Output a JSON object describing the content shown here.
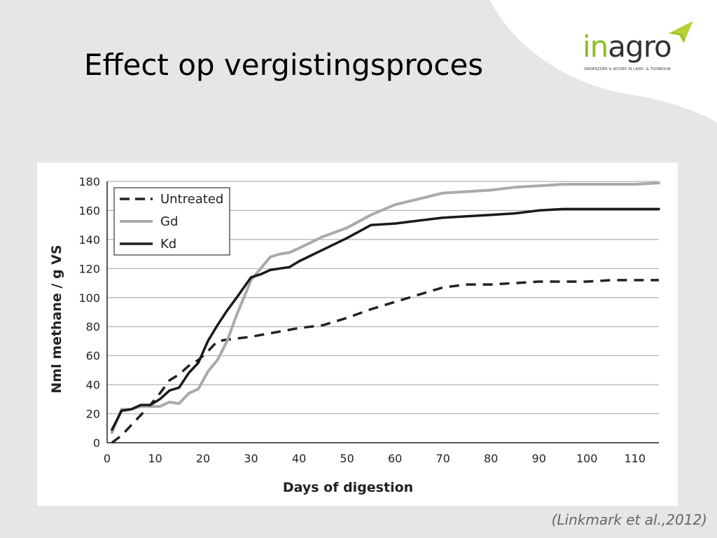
{
  "slide": {
    "title": "Effect op vergistingsproces",
    "citation": "(Linkmark et al.,2012)"
  },
  "logo": {
    "text_in": "in",
    "text_agro": "agro",
    "subtitle": "ONDERZOEK & ADVIES IN LAND- & TUINBOUW",
    "colors": {
      "green": "#8dbe24",
      "dark": "#333333",
      "leaf": "#b5d334"
    }
  },
  "colors": {
    "background": "#e6e6e6",
    "swoosh": "#ffffff",
    "grid": "#b0b0b0"
  },
  "chart_data": {
    "type": "line",
    "title": "",
    "xlabel": "Days of digestion",
    "ylabel": "Nml methane / g VS",
    "xlim": [
      0,
      115
    ],
    "ylim": [
      0,
      180
    ],
    "xticks": [
      0,
      10,
      20,
      30,
      40,
      50,
      60,
      70,
      80,
      90,
      100,
      110
    ],
    "yticks": [
      0,
      20,
      40,
      60,
      80,
      100,
      120,
      140,
      160,
      180
    ],
    "grid": "horizontal",
    "legend_position": "top-left",
    "series": [
      {
        "name": "Untreated",
        "color": "#222222",
        "style": "dashed",
        "x": [
          1,
          3,
          5,
          7,
          9,
          11,
          13,
          15,
          17,
          19,
          21,
          23,
          25,
          30,
          35,
          40,
          45,
          50,
          55,
          60,
          65,
          70,
          75,
          80,
          85,
          90,
          95,
          100,
          105,
          110,
          115
        ],
        "y": [
          0,
          5,
          12,
          19,
          26,
          34,
          43,
          47,
          53,
          57,
          63,
          70,
          71,
          73,
          76,
          79,
          81,
          86,
          92,
          97,
          102,
          107,
          109,
          109,
          110,
          111,
          111,
          111,
          112,
          112,
          112
        ]
      },
      {
        "name": "Gd",
        "color": "#aaaaaa",
        "style": "solid",
        "x": [
          1,
          3,
          5,
          7,
          9,
          11,
          13,
          15,
          17,
          19,
          21,
          23,
          25,
          27,
          30,
          32,
          34,
          36,
          38,
          40,
          45,
          50,
          55,
          60,
          65,
          70,
          75,
          80,
          85,
          90,
          95,
          100,
          105,
          110,
          115
        ],
        "y": [
          7,
          23,
          23,
          25,
          25,
          25,
          28,
          27,
          34,
          37,
          49,
          57,
          70,
          88,
          112,
          120,
          128,
          130,
          131,
          134,
          142,
          148,
          157,
          164,
          168,
          172,
          173,
          174,
          176,
          177,
          178,
          178,
          178,
          178,
          179
        ]
      },
      {
        "name": "Kd",
        "color": "#1a1a1a",
        "style": "solid",
        "x": [
          1,
          3,
          5,
          7,
          9,
          11,
          13,
          15,
          17,
          19,
          21,
          23,
          25,
          27,
          30,
          32,
          34,
          36,
          38,
          40,
          45,
          50,
          55,
          60,
          65,
          70,
          75,
          80,
          85,
          90,
          95,
          100,
          105,
          110,
          115
        ],
        "y": [
          9,
          22,
          23,
          26,
          26,
          30,
          36,
          38,
          48,
          55,
          70,
          81,
          91,
          100,
          114,
          116,
          119,
          120,
          121,
          125,
          133,
          141,
          150,
          151,
          153,
          155,
          156,
          157,
          158,
          160,
          161,
          161,
          161,
          161,
          161
        ]
      }
    ]
  }
}
